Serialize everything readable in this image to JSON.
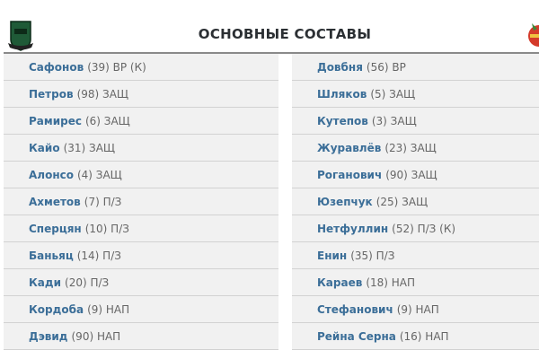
{
  "title": "ОСНОВНЫЕ СОСТАВЫ",
  "colors": {
    "name": "#3b6e98",
    "detail": "#666666",
    "row_bg": "#f1f1f1"
  },
  "home_team": {
    "logo": "krasnodar-crest",
    "players": [
      {
        "name": "Сафонов",
        "info": "(39) ВР (К)"
      },
      {
        "name": "Петров",
        "info": "(98) ЗАЩ"
      },
      {
        "name": "Рамирес",
        "info": "(6) ЗАЩ"
      },
      {
        "name": "Кайо",
        "info": "(31) ЗАЩ"
      },
      {
        "name": "Алонсо",
        "info": "(4) ЗАЩ"
      },
      {
        "name": "Ахметов",
        "info": "(7) П/З"
      },
      {
        "name": "Сперцян",
        "info": "(10) П/З"
      },
      {
        "name": "Баньяц",
        "info": "(14) П/З"
      },
      {
        "name": "Кади",
        "info": "(20) П/З"
      },
      {
        "name": "Кордоба",
        "info": "(9) НАП"
      },
      {
        "name": "Дэвид",
        "info": "(90) НАП"
      }
    ]
  },
  "away_team": {
    "logo": "cska-crest",
    "players": [
      {
        "name": "Довбня",
        "info": "(56) ВР"
      },
      {
        "name": "Шляков",
        "info": "(5) ЗАЩ"
      },
      {
        "name": "Кутепов",
        "info": "(3) ЗАЩ"
      },
      {
        "name": "Журавлёв",
        "info": "(23) ЗАЩ"
      },
      {
        "name": "Рогaнович",
        "info": "(90) ЗАЩ"
      },
      {
        "name": "Юзепчук",
        "info": "(25) ЗАЩ"
      },
      {
        "name": "Нетфуллин",
        "info": "(52) П/З (К)"
      },
      {
        "name": "Енин",
        "info": "(35) П/З"
      },
      {
        "name": "Караев",
        "info": "(18) НАП"
      },
      {
        "name": "Стефанович",
        "info": "(9) НАП"
      },
      {
        "name": "Рейна Серна",
        "info": "(16) НАП"
      }
    ]
  }
}
